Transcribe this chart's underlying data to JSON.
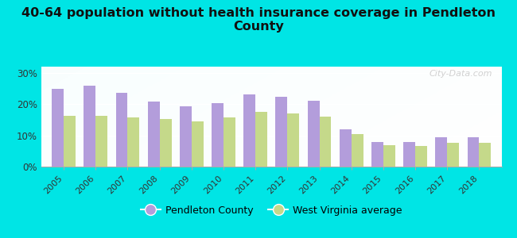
{
  "title": "40-64 population without health insurance coverage in Pendleton\nCounty",
  "years": [
    2005,
    2006,
    2007,
    2008,
    2009,
    2010,
    2011,
    2012,
    2013,
    2014,
    2015,
    2016,
    2017,
    2018
  ],
  "pendleton": [
    25.0,
    26.0,
    23.5,
    20.8,
    19.2,
    20.3,
    23.0,
    22.3,
    21.2,
    12.0,
    8.0,
    8.0,
    9.5,
    9.5
  ],
  "wv_average": [
    16.3,
    16.3,
    15.7,
    15.3,
    14.6,
    15.7,
    17.6,
    16.9,
    15.9,
    10.3,
    6.9,
    6.6,
    7.5,
    7.7
  ],
  "pendleton_color": "#b39ddb",
  "wv_color": "#c5d98a",
  "background_color": "#00e5e5",
  "ylim": [
    0,
    32
  ],
  "yticks": [
    0,
    10,
    20,
    30
  ],
  "ytick_labels": [
    "0%",
    "10%",
    "20%",
    "30%"
  ],
  "legend_pendleton": "Pendleton County",
  "legend_wv": "West Virginia average",
  "watermark": "City-Data.com",
  "bar_width": 0.37
}
